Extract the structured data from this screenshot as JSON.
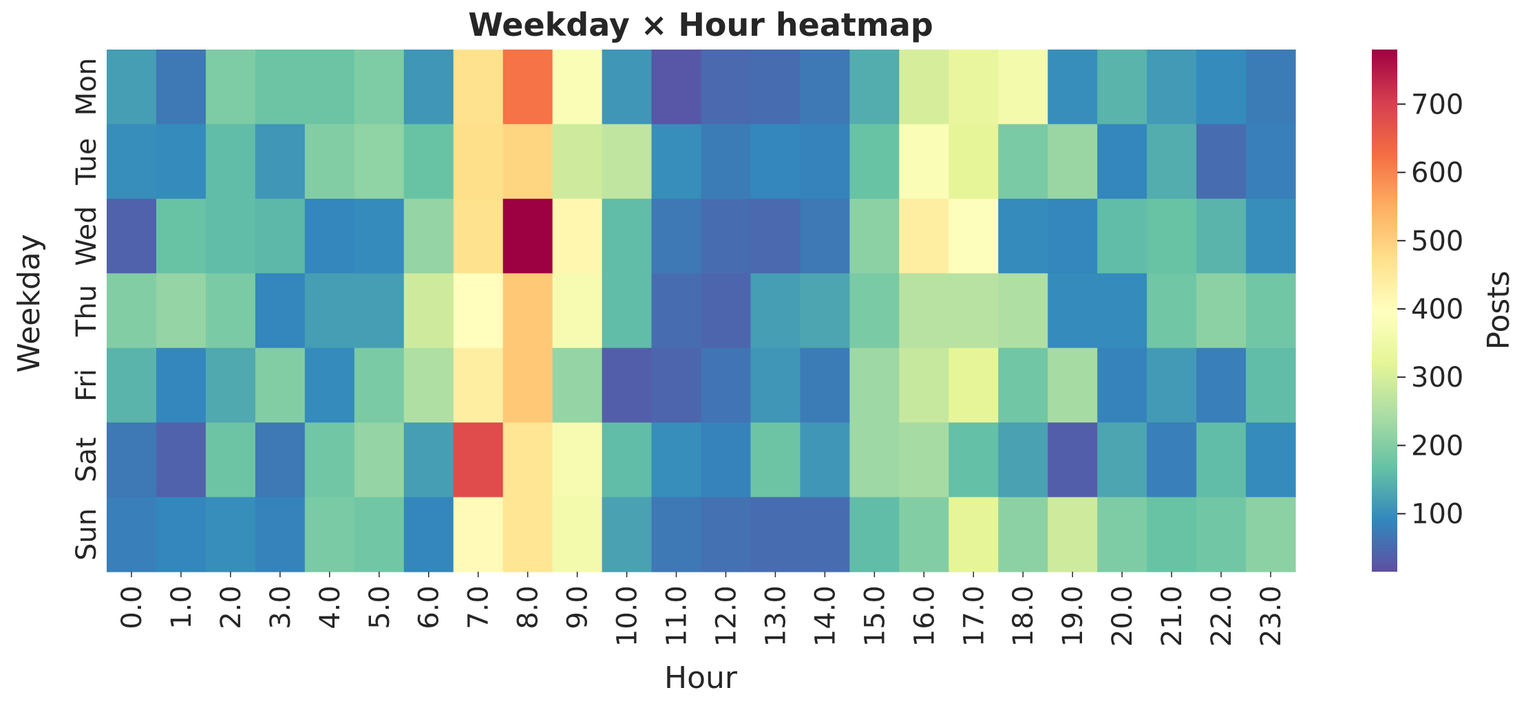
{
  "chart_data": {
    "type": "heatmap",
    "title": "Weekday × Hour heatmap",
    "xlabel": "Hour",
    "ylabel": "Weekday",
    "colorbar_label": "Posts",
    "colormap": "Spectral_r",
    "vmin": 15,
    "vmax": 780,
    "colorbar_ticks": [
      "100",
      "200",
      "300",
      "400",
      "500",
      "600",
      "700"
    ],
    "x": [
      "0.0",
      "1.0",
      "2.0",
      "3.0",
      "4.0",
      "5.0",
      "6.0",
      "7.0",
      "8.0",
      "9.0",
      "10.0",
      "11.0",
      "12.0",
      "13.0",
      "14.0",
      "15.0",
      "16.0",
      "17.0",
      "18.0",
      "19.0",
      "20.0",
      "21.0",
      "22.0",
      "23.0"
    ],
    "y": [
      "Mon",
      "Tue",
      "Wed",
      "Thu",
      "Fri",
      "Sat",
      "Sun"
    ],
    "values": [
      [
        120,
        70,
        195,
        175,
        175,
        195,
        110,
        470,
        620,
        380,
        110,
        25,
        50,
        55,
        70,
        140,
        300,
        330,
        360,
        100,
        150,
        115,
        95,
        75
      ],
      [
        100,
        95,
        160,
        110,
        200,
        215,
        170,
        475,
        490,
        290,
        270,
        100,
        75,
        90,
        85,
        170,
        380,
        320,
        190,
        225,
        90,
        140,
        55,
        80
      ],
      [
        40,
        170,
        160,
        155,
        90,
        95,
        220,
        470,
        780,
        420,
        160,
        70,
        55,
        50,
        70,
        210,
        440,
        390,
        95,
        90,
        160,
        170,
        150,
        100
      ],
      [
        200,
        220,
        190,
        90,
        120,
        120,
        290,
        400,
        510,
        370,
        160,
        55,
        45,
        120,
        130,
        190,
        260,
        260,
        250,
        95,
        95,
        180,
        210,
        180
      ],
      [
        150,
        90,
        135,
        200,
        95,
        190,
        250,
        440,
        510,
        220,
        35,
        45,
        65,
        110,
        75,
        230,
        280,
        320,
        180,
        240,
        85,
        115,
        80,
        160
      ],
      [
        70,
        40,
        175,
        70,
        180,
        220,
        120,
        680,
        460,
        370,
        160,
        100,
        85,
        175,
        110,
        230,
        240,
        165,
        125,
        35,
        130,
        80,
        160,
        95
      ],
      [
        80,
        90,
        100,
        85,
        190,
        180,
        90,
        410,
        460,
        360,
        125,
        70,
        60,
        55,
        55,
        160,
        200,
        320,
        210,
        290,
        195,
        170,
        180,
        210
      ]
    ],
    "grid": false,
    "legend": "colorbar-right"
  }
}
